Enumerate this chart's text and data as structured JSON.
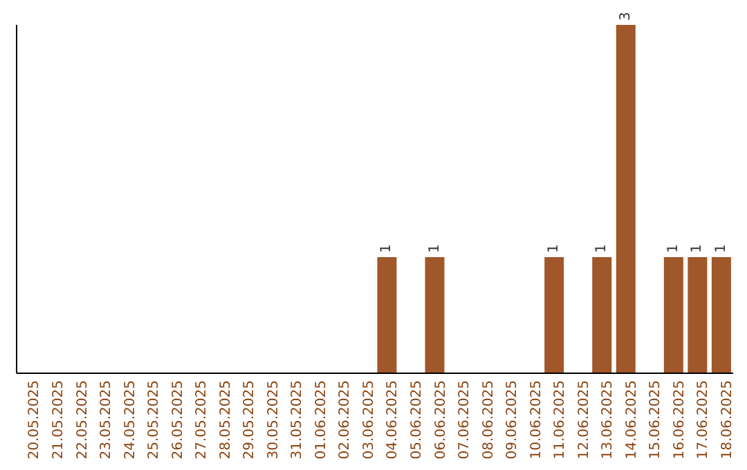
{
  "chart_data": {
    "type": "bar",
    "categories": [
      "20.05.2025",
      "21.05.2025",
      "22.05.2025",
      "23.05.2025",
      "24.05.2025",
      "25.05.2025",
      "26.05.2025",
      "27.05.2025",
      "28.05.2025",
      "29.05.2025",
      "30.05.2025",
      "31.05.2025",
      "01.06.2025",
      "02.06.2025",
      "03.06.2025",
      "04.06.2025",
      "05.06.2025",
      "06.06.2025",
      "07.06.2025",
      "08.06.2025",
      "09.06.2025",
      "10.06.2025",
      "11.06.2025",
      "12.06.2025",
      "13.06.2025",
      "14.06.2025",
      "15.06.2025",
      "16.06.2025",
      "17.06.2025",
      "18.06.2025"
    ],
    "values": [
      null,
      null,
      null,
      null,
      null,
      null,
      null,
      null,
      null,
      null,
      null,
      null,
      null,
      null,
      null,
      1,
      null,
      1,
      null,
      null,
      null,
      null,
      1,
      null,
      1,
      3,
      null,
      1,
      1,
      1
    ],
    "data_labels": true,
    "color": "#a0572a",
    "grid": false,
    "legend": false
  }
}
